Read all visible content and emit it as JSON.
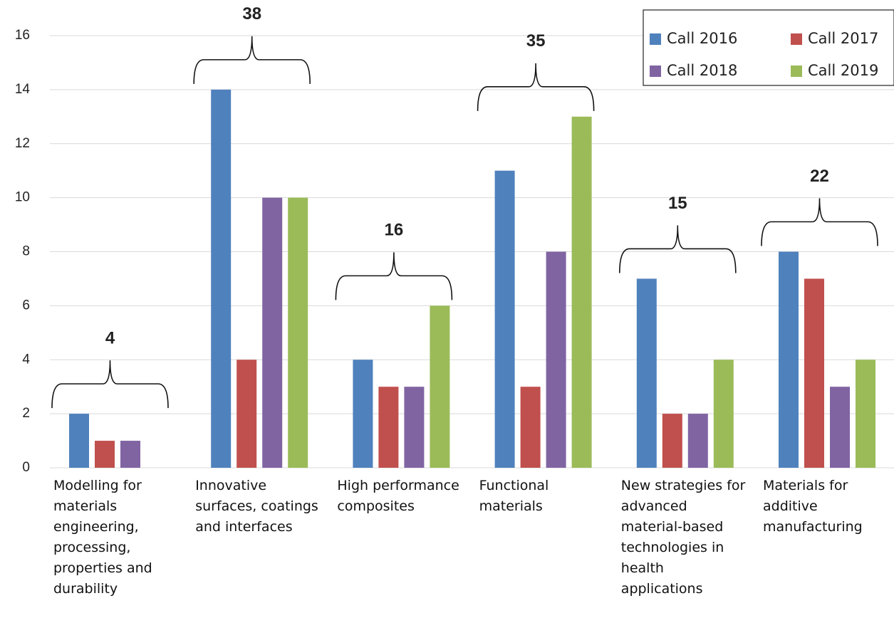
{
  "chart_data": {
    "type": "bar",
    "categories": [
      "Modelling for materials engineering, processing, properties and durability",
      "Innovative surfaces, coatings and interfaces",
      "High performance composites",
      "Functional materials",
      "New strategies for advanced material-based technologies in health applications",
      "Materials for additive manufacturing"
    ],
    "series": [
      {
        "name": "Call 2016",
        "color": "#4f81bd",
        "values": [
          2,
          14,
          4,
          11,
          7,
          8
        ]
      },
      {
        "name": "Call 2017",
        "color": "#c0504d",
        "values": [
          1,
          4,
          3,
          3,
          2,
          7
        ]
      },
      {
        "name": "Call 2018",
        "color": "#8064a2",
        "values": [
          1,
          10,
          3,
          8,
          2,
          3
        ]
      },
      {
        "name": "Call 2019",
        "color": "#9bbb59",
        "values": [
          null,
          10,
          6,
          13,
          4,
          4
        ]
      }
    ],
    "totals": [
      4,
      38,
      16,
      35,
      15,
      22
    ],
    "ylim": [
      0,
      16
    ],
    "yticks": [
      0,
      2,
      4,
      6,
      8,
      10,
      12,
      14,
      16
    ],
    "grid": true,
    "legend": "top-right"
  }
}
